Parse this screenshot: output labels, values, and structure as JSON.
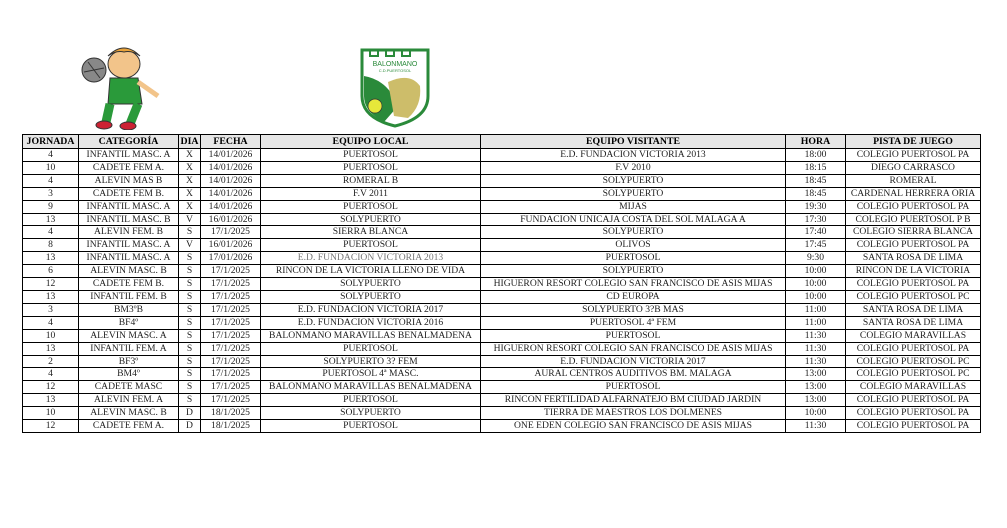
{
  "logos": {
    "club_text": [
      "BALONMANO",
      "C.D.PUERTOSOL",
      "1974"
    ]
  },
  "colors": {
    "club_green": "#2a8a3a",
    "club_gold": "#cdbd6a",
    "header_bg": "#e6e6e6"
  },
  "headers": [
    "JORNADA",
    "CATEGORÍA",
    "DIA",
    "FECHA",
    "EQUIPO LOCAL",
    "EQUIPO VISITANTE",
    "HORA",
    "PISTA DE JUEGO"
  ],
  "rows": [
    [
      "4",
      "INFANTIL MASC. A",
      "X",
      "14/01/2026",
      "PUERTOSOL",
      "E.D. FUNDACION VICTORIA 2013",
      "18:00",
      "COLEGIO PUERTOSOL PA"
    ],
    [
      "10",
      "CADETE FEM A.",
      "X",
      "14/01/2026",
      "PUERTOSOL",
      "F.V 2010",
      "18:15",
      "DIEGO CARRASCO"
    ],
    [
      "4",
      "ALEVIN MAS B",
      "X",
      "14/01/2026",
      "ROMERAL B",
      "SOLYPUERTO",
      "18:45",
      "ROMERAL"
    ],
    [
      "3",
      "CADETE FEM B.",
      "X",
      "14/01/2026",
      "F.V 2011",
      "SOLYPUERTO",
      "18:45",
      "CARDENAL HERRERA ORIA"
    ],
    [
      "9",
      "INFANTIL MASC. A",
      "X",
      "14/01/2026",
      "PUERTOSOL",
      "MIJAS",
      "19:30",
      "COLEGIO PUERTOSOL PA"
    ],
    [
      "13",
      "INFANTIL MASC. B",
      "V",
      "16/01/2026",
      "SOLYPUERTO",
      "FUNDACION UNICAJA COSTA DEL SOL MALAGA A",
      "17:30",
      "COLEGIO PUERTOSOL P B"
    ],
    [
      "4",
      "ALEVIN FEM. B",
      "S",
      "17/1/2025",
      "SIERRA BLANCA",
      "SOLYPUERTO",
      "17:40",
      "COLEGIO SIERRA BLANCA"
    ],
    [
      "8",
      "INFANTIL MASC. A",
      "V",
      "16/01/2026",
      "PUERTOSOL",
      "OLIVOS",
      "17:45",
      "COLEGIO PUERTOSOL PA"
    ],
    [
      "13",
      "INFANTIL MASC. A",
      "S",
      "17/01/2026",
      "E.D. FUNDACION VICTORIA 2013",
      "PUERTOSOL",
      "9:30",
      "SANTA ROSA DE LIMA"
    ],
    [
      "6",
      "ALEVIN MASC. B",
      "S",
      "17/1/2025",
      "RINCON DE LA VICTORIA LLENO DE VIDA",
      "SOLYPUERTO",
      "10:00",
      "RINCON DE LA VICTORIA"
    ],
    [
      "12",
      "CADETE FEM B.",
      "S",
      "17/1/2025",
      "SOLYPUERTO",
      "HIGUERON RESORT COLEGIO SAN FRANCISCO DE ASIS MIJAS",
      "10:00",
      "COLEGIO PUERTOSOL PA"
    ],
    [
      "13",
      "INFANTIL FEM. B",
      "S",
      "17/1/2025",
      "SOLYPUERTO",
      "CD EUROPA",
      "10:00",
      "COLEGIO PUERTOSOL PC"
    ],
    [
      "3",
      "BM3ºB",
      "S",
      "17/1/2025",
      "E.D. FUNDACION VICTORIA 2017",
      "SOLYPUERTO 3?B MAS",
      "11:00",
      "SANTA ROSA DE LIMA"
    ],
    [
      "4",
      "BF4º",
      "S",
      "17/1/2025",
      "E.D. FUNDACION VICTORIA 2016",
      "PUERTOSOL 4ª FEM",
      "11:00",
      "SANTA ROSA DE LIMA"
    ],
    [
      "10",
      "ALEVIN MASC. A",
      "S",
      "17/1/2025",
      "BALONMANO MARAVILLAS BENALMADENA",
      "PUERTOSOL",
      "11:30",
      "COLEGIO MARAVILLAS"
    ],
    [
      "13",
      "INFANTIL FEM. A",
      "S",
      "17/1/2025",
      "PUERTOSOL",
      "HIGUERON RESORT COLEGIO SAN FRANCISCO DE ASIS MIJAS",
      "11:30",
      "COLEGIO PUERTOSOL PA"
    ],
    [
      "2",
      "BF3º",
      "S",
      "17/1/2025",
      "SOLYPUERTO 3? FEM",
      "E.D. FUNDACION VICTORIA 2017",
      "11:30",
      "COLEGIO PUERTOSOL PC"
    ],
    [
      "4",
      "BM4º",
      "S",
      "17/1/2025",
      "PUERTOSOL 4ª MASC.",
      "AURAL CENTROS AUDITIVOS BM. MALAGA",
      "13:00",
      "COLEGIO PUERTOSOL PC"
    ],
    [
      "12",
      "CADETE MASC",
      "S",
      "17/1/2025",
      "BALONMANO MARAVILLAS BENALMADENA",
      "PUERTOSOL",
      "13:00",
      "COLEGIO MARAVILLAS"
    ],
    [
      "13",
      "ALEVIN FEM. A",
      "S",
      "17/1/2025",
      "PUERTOSOL",
      "RINCON FERTILIDAD ALFARNATEJO BM CIUDAD JARDIN",
      "13:00",
      "COLEGIO PUERTOSOL PA"
    ],
    [
      "10",
      "ALEVIN MASC. B",
      "D",
      "18/1/2025",
      "SOLYPUERTO",
      "TIERRA DE MAESTROS LOS DOLMENES",
      "10:00",
      "COLEGIO PUERTOSOL PA"
    ],
    [
      "12",
      "CADETE FEM A.",
      "D",
      "18/1/2025",
      "PUERTOSOL",
      "ONE EDEN COLEGIO SAN FRANCISCO DE ASIS MIJAS",
      "11:30",
      "COLEGIO PUERTOSOL PA"
    ]
  ],
  "greyed_cells": [
    [
      8,
      4
    ]
  ]
}
